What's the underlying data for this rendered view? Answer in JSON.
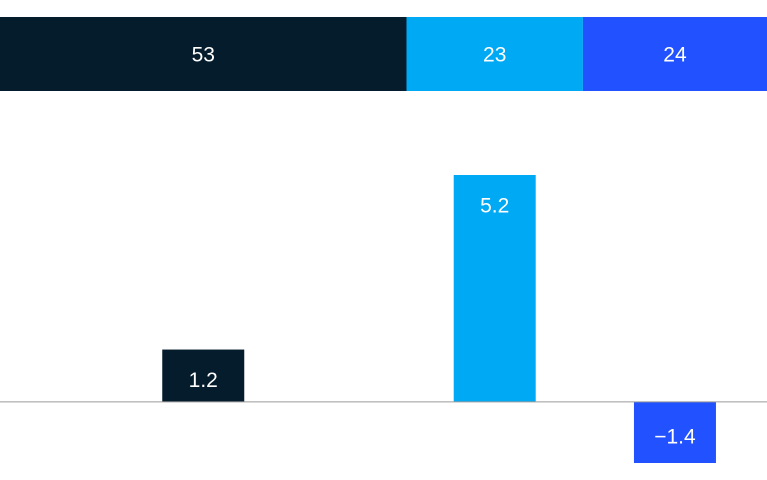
{
  "chart_data": [
    {
      "type": "stacked_bar",
      "values": [
        53,
        23,
        24
      ],
      "colors": [
        "#051c2c",
        "#00a9f4",
        "#2251ff"
      ]
    },
    {
      "type": "bar",
      "values": [
        1.2,
        5.2,
        -1.4
      ],
      "value_labels": [
        "1.2",
        "5.2",
        "−1.4"
      ],
      "colors": [
        "#051c2c",
        "#00a9f4",
        "#2251ff"
      ]
    }
  ]
}
